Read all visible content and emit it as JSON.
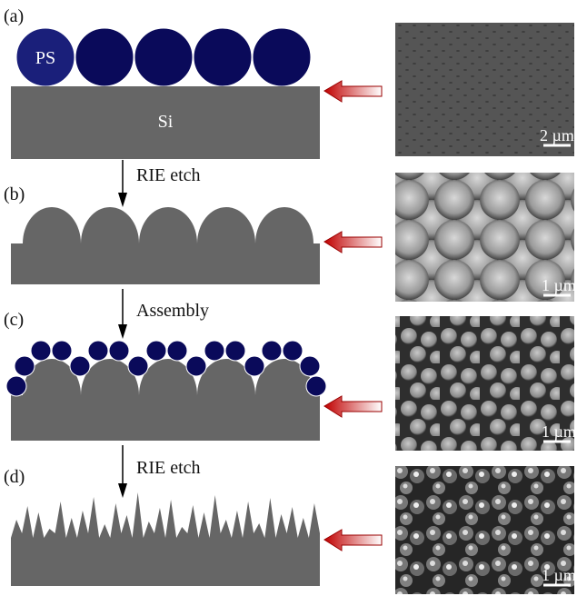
{
  "panels": [
    {
      "label": "(a)",
      "scale_bar": "2 µm"
    },
    {
      "label": "(b)",
      "scale_bar": "1 µm"
    },
    {
      "label": "(c)",
      "scale_bar": "1 µm"
    },
    {
      "label": "(d)",
      "scale_bar": "1 µm"
    }
  ],
  "materials": {
    "sphere": "PS",
    "substrate": "Si"
  },
  "steps": [
    "RIE etch",
    "Assembly",
    "RIE etch"
  ]
}
